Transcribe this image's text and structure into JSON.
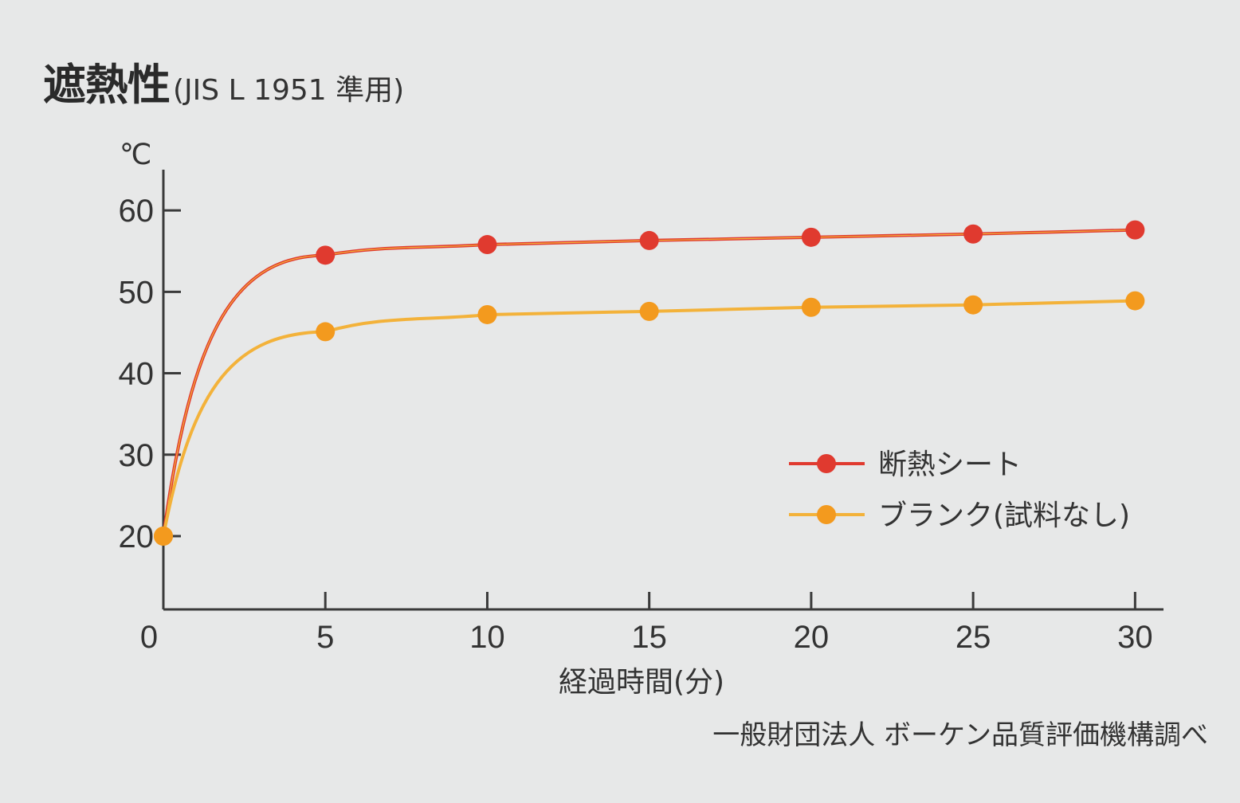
{
  "title": {
    "main": "遮熱性",
    "sub": "(JIS L 1951 準用)"
  },
  "source": "一般財団法人 ボーケン品質評価機構調べ",
  "colors": {
    "series1": "#e03a2f",
    "series2": "#f39a1e",
    "series2_line": "#f3b23a",
    "axis": "#3a3a3a",
    "background": "#e7e8e8"
  },
  "chart_data": {
    "type": "line",
    "title": "遮熱性",
    "subtitle": "(JIS L 1951 準用)",
    "xlabel": "経過時間(分)",
    "ylabel": "℃",
    "x": [
      0,
      5,
      10,
      15,
      20,
      25,
      30
    ],
    "xticks": [
      "0",
      "5",
      "10",
      "15",
      "20",
      "25",
      "30"
    ],
    "yticks": [
      "20",
      "30",
      "40",
      "50",
      "60"
    ],
    "xlim": [
      0,
      31
    ],
    "ylim": [
      11,
      65
    ],
    "grid": false,
    "legend_position": "right-middle",
    "series": [
      {
        "name": "断熱シート",
        "values": [
          20,
          54.5,
          55.8,
          56.3,
          56.7,
          57.1,
          57.6
        ],
        "color": "#e03a2f"
      },
      {
        "name": "ブランク(試料なし)",
        "values": [
          20,
          45.1,
          47.2,
          47.6,
          48.1,
          48.4,
          48.9
        ],
        "color": "#f39a1e"
      }
    ]
  }
}
